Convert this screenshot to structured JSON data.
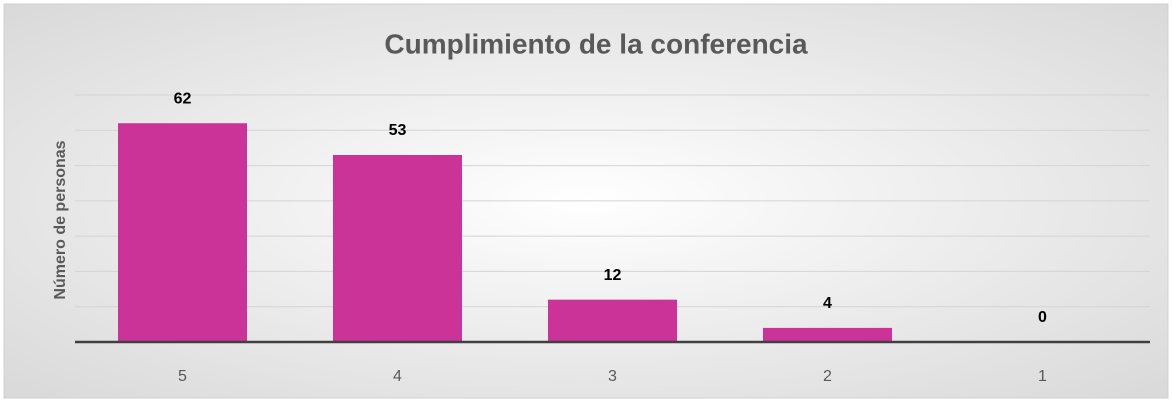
{
  "chart_data": {
    "type": "bar",
    "title": "Cumplimiento de la conferencia",
    "y_label": "Número de personas",
    "categories": [
      "5",
      "4",
      "3",
      "2",
      "1"
    ],
    "values": [
      62,
      53,
      12,
      4,
      0
    ],
    "color": "#cc3399",
    "ylim": [
      0,
      70
    ],
    "yticks": [
      0,
      10,
      20,
      30,
      40,
      50,
      60,
      70
    ],
    "grid": true
  }
}
